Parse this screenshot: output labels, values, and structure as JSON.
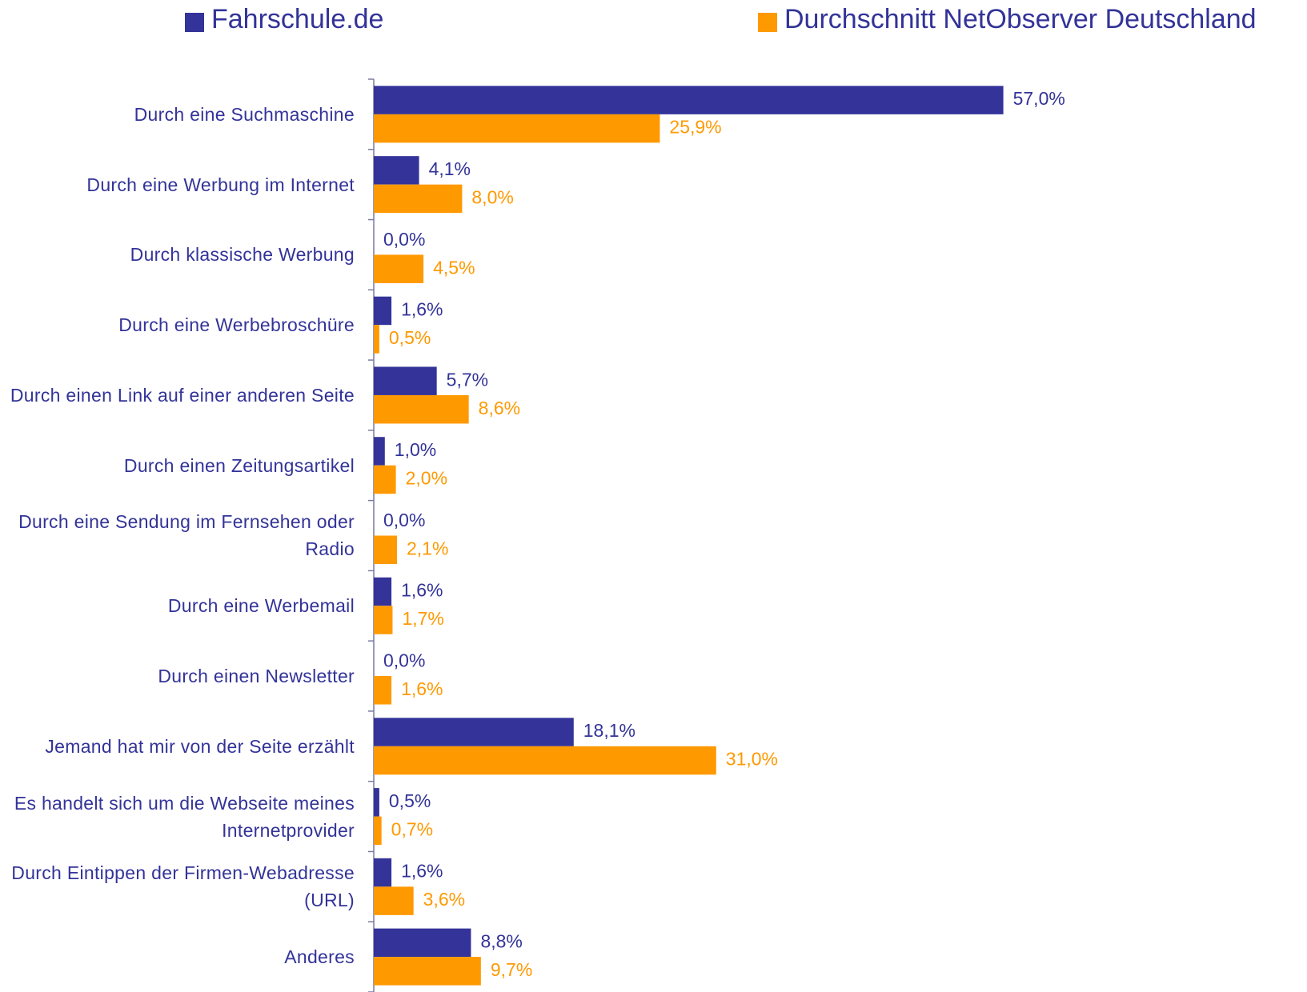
{
  "chart_data": {
    "type": "bar",
    "orientation": "horizontal",
    "categories": [
      "Durch eine Suchmaschine",
      "Durch eine Werbung im Internet",
      "Durch klassische Werbung",
      "Durch eine Werbebroschüre",
      "Durch einen Link auf einer anderen Seite",
      "Durch einen Zeitungsartikel",
      "Durch eine Sendung im Fernsehen oder Radio",
      "Durch eine Werbemail",
      "Durch einen Newsletter",
      "Jemand hat mir von der Seite erzählt",
      "Es handelt sich um die Webseite meines Internetprovider",
      "Durch Eintippen der Firmen-Webadresse (URL)",
      "Anderes"
    ],
    "series": [
      {
        "name": "Fahrschule.de",
        "color": "#333399",
        "values": [
          57.0,
          4.1,
          0.0,
          1.6,
          5.7,
          1.0,
          0.0,
          1.6,
          0.0,
          18.1,
          0.5,
          1.6,
          8.8
        ],
        "value_labels": [
          "57,0%",
          "4,1%",
          "0,0%",
          "1,6%",
          "5,7%",
          "1,0%",
          "0,0%",
          "1,6%",
          "0,0%",
          "18,1%",
          "0,5%",
          "1,6%",
          "8,8%"
        ]
      },
      {
        "name": "Durchschnitt NetObserver Deutschland",
        "color": "#ff9900",
        "values": [
          25.9,
          8.0,
          4.5,
          0.5,
          8.6,
          2.0,
          2.1,
          1.7,
          1.6,
          31.0,
          0.7,
          3.6,
          9.7
        ],
        "value_labels": [
          "25,9%",
          "8,0%",
          "4,5%",
          "0,5%",
          "8,6%",
          "2,0%",
          "2,1%",
          "1,7%",
          "1,6%",
          "31,0%",
          "0,7%",
          "3,6%",
          "9,7%"
        ]
      }
    ],
    "xlim": [
      0,
      60
    ],
    "legend": "top"
  }
}
